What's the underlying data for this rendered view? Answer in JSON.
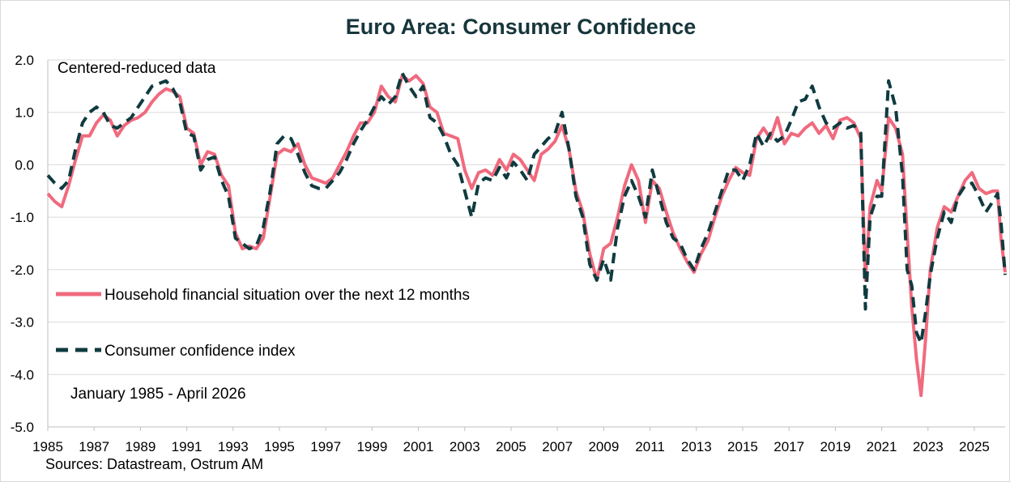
{
  "chart_data": {
    "type": "line",
    "title": "Euro Area:  Consumer Confidence",
    "annotation": "Centered-reduced data",
    "period": "January 1985 - April 2026",
    "source": "Sources: Datastream, Ostrum AM",
    "ylim": [
      -5.0,
      2.0
    ],
    "xlim": [
      1985,
      2026.33
    ],
    "y_ticks": [
      "2.0",
      "1.0",
      "0.0",
      "-1.0",
      "-2.0",
      "-3.0",
      "-4.0",
      "-5.0"
    ],
    "x_ticks": [
      "1985",
      "1987",
      "1989",
      "1991",
      "1993",
      "1995",
      "1997",
      "1999",
      "2001",
      "2003",
      "2005",
      "2007",
      "2009",
      "2011",
      "2013",
      "2015",
      "2017",
      "2019",
      "2021",
      "2023",
      "2025"
    ],
    "grid": "horizontal",
    "legend_placement": "left",
    "series": [
      {
        "name": "Household financial situation over the next 12 months",
        "color": "#f06a7e",
        "style": "solid",
        "points": [
          [
            1985.0,
            -0.55
          ],
          [
            1985.3,
            -0.7
          ],
          [
            1985.6,
            -0.8
          ],
          [
            1985.9,
            -0.4
          ],
          [
            1986.2,
            0.1
          ],
          [
            1986.5,
            0.55
          ],
          [
            1986.8,
            0.55
          ],
          [
            1987.1,
            0.8
          ],
          [
            1987.4,
            0.95
          ],
          [
            1987.7,
            0.85
          ],
          [
            1988.0,
            0.55
          ],
          [
            1988.3,
            0.75
          ],
          [
            1988.6,
            0.85
          ],
          [
            1988.9,
            0.9
          ],
          [
            1989.2,
            1.0
          ],
          [
            1989.5,
            1.2
          ],
          [
            1989.8,
            1.35
          ],
          [
            1990.1,
            1.45
          ],
          [
            1990.4,
            1.4
          ],
          [
            1990.7,
            1.3
          ],
          [
            1991.0,
            0.7
          ],
          [
            1991.3,
            0.6
          ],
          [
            1991.6,
            0.0
          ],
          [
            1991.9,
            0.25
          ],
          [
            1992.2,
            0.2
          ],
          [
            1992.5,
            -0.2
          ],
          [
            1992.8,
            -0.4
          ],
          [
            1993.1,
            -1.3
          ],
          [
            1993.4,
            -1.6
          ],
          [
            1993.7,
            -1.55
          ],
          [
            1994.0,
            -1.6
          ],
          [
            1994.3,
            -1.4
          ],
          [
            1994.6,
            -0.6
          ],
          [
            1994.9,
            0.2
          ],
          [
            1995.2,
            0.3
          ],
          [
            1995.5,
            0.25
          ],
          [
            1995.8,
            0.4
          ],
          [
            1996.1,
            0.0
          ],
          [
            1996.4,
            -0.25
          ],
          [
            1996.7,
            -0.3
          ],
          [
            1997.0,
            -0.35
          ],
          [
            1997.3,
            -0.25
          ],
          [
            1997.6,
            0.0
          ],
          [
            1997.9,
            0.25
          ],
          [
            1998.2,
            0.55
          ],
          [
            1998.5,
            0.8
          ],
          [
            1998.8,
            0.8
          ],
          [
            1999.1,
            1.0
          ],
          [
            1999.4,
            1.5
          ],
          [
            1999.7,
            1.3
          ],
          [
            2000.0,
            1.2
          ],
          [
            2000.3,
            1.7
          ],
          [
            2000.6,
            1.6
          ],
          [
            2000.9,
            1.7
          ],
          [
            2001.2,
            1.55
          ],
          [
            2001.5,
            1.1
          ],
          [
            2001.8,
            1.0
          ],
          [
            2002.1,
            0.6
          ],
          [
            2002.4,
            0.55
          ],
          [
            2002.7,
            0.5
          ],
          [
            2003.0,
            -0.1
          ],
          [
            2003.3,
            -0.45
          ],
          [
            2003.6,
            -0.15
          ],
          [
            2003.9,
            -0.1
          ],
          [
            2004.2,
            -0.2
          ],
          [
            2004.5,
            0.1
          ],
          [
            2004.8,
            -0.1
          ],
          [
            2005.1,
            0.2
          ],
          [
            2005.4,
            0.1
          ],
          [
            2005.7,
            -0.1
          ],
          [
            2006.0,
            -0.3
          ],
          [
            2006.3,
            0.2
          ],
          [
            2006.6,
            0.3
          ],
          [
            2006.9,
            0.45
          ],
          [
            2007.2,
            0.75
          ],
          [
            2007.5,
            0.3
          ],
          [
            2007.8,
            -0.5
          ],
          [
            2008.1,
            -0.9
          ],
          [
            2008.4,
            -1.7
          ],
          [
            2008.7,
            -2.2
          ],
          [
            2009.0,
            -1.6
          ],
          [
            2009.3,
            -1.5
          ],
          [
            2009.6,
            -1.0
          ],
          [
            2009.9,
            -0.4
          ],
          [
            2010.2,
            0.0
          ],
          [
            2010.5,
            -0.3
          ],
          [
            2010.8,
            -1.1
          ],
          [
            2011.1,
            -0.3
          ],
          [
            2011.4,
            -0.45
          ],
          [
            2011.7,
            -0.9
          ],
          [
            2012.0,
            -1.3
          ],
          [
            2012.3,
            -1.6
          ],
          [
            2012.6,
            -1.85
          ],
          [
            2012.9,
            -2.05
          ],
          [
            2013.2,
            -1.7
          ],
          [
            2013.5,
            -1.45
          ],
          [
            2013.8,
            -1.0
          ],
          [
            2014.1,
            -0.6
          ],
          [
            2014.4,
            -0.3
          ],
          [
            2014.7,
            -0.05
          ],
          [
            2015.0,
            -0.15
          ],
          [
            2015.3,
            -0.2
          ],
          [
            2015.6,
            0.5
          ],
          [
            2015.9,
            0.7
          ],
          [
            2016.2,
            0.5
          ],
          [
            2016.5,
            0.9
          ],
          [
            2016.8,
            0.4
          ],
          [
            2017.1,
            0.6
          ],
          [
            2017.4,
            0.55
          ],
          [
            2017.7,
            0.7
          ],
          [
            2018.0,
            0.8
          ],
          [
            2018.3,
            0.6
          ],
          [
            2018.6,
            0.75
          ],
          [
            2018.9,
            0.5
          ],
          [
            2019.2,
            0.85
          ],
          [
            2019.5,
            0.9
          ],
          [
            2019.8,
            0.8
          ],
          [
            2020.1,
            0.5
          ],
          [
            2020.3,
            -2.2
          ],
          [
            2020.5,
            -0.8
          ],
          [
            2020.8,
            -0.3
          ],
          [
            2021.0,
            -0.5
          ],
          [
            2021.3,
            0.9
          ],
          [
            2021.6,
            0.7
          ],
          [
            2021.9,
            0.2
          ],
          [
            2022.1,
            -1.3
          ],
          [
            2022.3,
            -2.7
          ],
          [
            2022.5,
            -3.7
          ],
          [
            2022.7,
            -4.4
          ],
          [
            2022.9,
            -3.3
          ],
          [
            2023.1,
            -2.0
          ],
          [
            2023.4,
            -1.2
          ],
          [
            2023.7,
            -0.8
          ],
          [
            2024.0,
            -0.9
          ],
          [
            2024.3,
            -0.6
          ],
          [
            2024.6,
            -0.3
          ],
          [
            2024.9,
            -0.15
          ],
          [
            2025.2,
            -0.45
          ],
          [
            2025.5,
            -0.55
          ],
          [
            2025.8,
            -0.5
          ],
          [
            2026.0,
            -0.5
          ],
          [
            2026.15,
            -1.4
          ],
          [
            2026.33,
            -2.05
          ]
        ]
      },
      {
        "name": "Consumer confidence index",
        "color": "#0f3b3f",
        "style": "dashed",
        "points": [
          [
            1985.0,
            -0.2
          ],
          [
            1985.3,
            -0.35
          ],
          [
            1985.6,
            -0.45
          ],
          [
            1985.9,
            -0.3
          ],
          [
            1986.2,
            0.3
          ],
          [
            1986.5,
            0.8
          ],
          [
            1986.8,
            1.0
          ],
          [
            1987.1,
            1.1
          ],
          [
            1987.4,
            1.0
          ],
          [
            1987.7,
            0.75
          ],
          [
            1988.0,
            0.7
          ],
          [
            1988.3,
            0.8
          ],
          [
            1988.6,
            0.9
          ],
          [
            1988.9,
            1.1
          ],
          [
            1989.2,
            1.3
          ],
          [
            1989.5,
            1.5
          ],
          [
            1989.8,
            1.55
          ],
          [
            1990.1,
            1.6
          ],
          [
            1990.4,
            1.45
          ],
          [
            1990.7,
            1.2
          ],
          [
            1991.0,
            0.6
          ],
          [
            1991.3,
            0.55
          ],
          [
            1991.6,
            -0.1
          ],
          [
            1991.9,
            0.1
          ],
          [
            1992.2,
            0.15
          ],
          [
            1992.5,
            -0.3
          ],
          [
            1992.8,
            -0.6
          ],
          [
            1993.1,
            -1.4
          ],
          [
            1993.4,
            -1.5
          ],
          [
            1993.7,
            -1.6
          ],
          [
            1994.0,
            -1.55
          ],
          [
            1994.3,
            -1.2
          ],
          [
            1994.6,
            -0.5
          ],
          [
            1994.9,
            0.4
          ],
          [
            1995.2,
            0.55
          ],
          [
            1995.5,
            0.5
          ],
          [
            1995.8,
            0.2
          ],
          [
            1996.1,
            -0.15
          ],
          [
            1996.4,
            -0.4
          ],
          [
            1996.7,
            -0.45
          ],
          [
            1997.0,
            -0.45
          ],
          [
            1997.3,
            -0.3
          ],
          [
            1997.6,
            -0.15
          ],
          [
            1997.9,
            0.1
          ],
          [
            1998.2,
            0.4
          ],
          [
            1998.5,
            0.65
          ],
          [
            1998.8,
            0.85
          ],
          [
            1999.1,
            1.1
          ],
          [
            1999.4,
            1.3
          ],
          [
            1999.7,
            1.15
          ],
          [
            2000.0,
            1.3
          ],
          [
            2000.3,
            1.75
          ],
          [
            2000.6,
            1.5
          ],
          [
            2000.9,
            1.3
          ],
          [
            2001.2,
            1.5
          ],
          [
            2001.5,
            0.9
          ],
          [
            2001.8,
            0.8
          ],
          [
            2002.1,
            0.55
          ],
          [
            2002.4,
            0.2
          ],
          [
            2002.7,
            0.0
          ],
          [
            2003.0,
            -0.5
          ],
          [
            2003.3,
            -1.0
          ],
          [
            2003.6,
            -0.35
          ],
          [
            2003.9,
            -0.25
          ],
          [
            2004.2,
            -0.3
          ],
          [
            2004.5,
            -0.05
          ],
          [
            2004.8,
            -0.25
          ],
          [
            2005.1,
            0.05
          ],
          [
            2005.4,
            -0.1
          ],
          [
            2005.7,
            -0.3
          ],
          [
            2006.0,
            0.2
          ],
          [
            2006.3,
            0.35
          ],
          [
            2006.6,
            0.5
          ],
          [
            2006.9,
            0.6
          ],
          [
            2007.2,
            1.0
          ],
          [
            2007.5,
            0.3
          ],
          [
            2007.8,
            -0.6
          ],
          [
            2008.1,
            -1.0
          ],
          [
            2008.4,
            -1.9
          ],
          [
            2008.7,
            -2.2
          ],
          [
            2009.0,
            -1.8
          ],
          [
            2009.3,
            -2.2
          ],
          [
            2009.6,
            -1.2
          ],
          [
            2009.9,
            -0.6
          ],
          [
            2010.2,
            -0.3
          ],
          [
            2010.5,
            -0.6
          ],
          [
            2010.8,
            -1.0
          ],
          [
            2011.1,
            -0.1
          ],
          [
            2011.4,
            -0.6
          ],
          [
            2011.7,
            -1.1
          ],
          [
            2012.0,
            -1.4
          ],
          [
            2012.3,
            -1.5
          ],
          [
            2012.6,
            -1.8
          ],
          [
            2012.9,
            -2.0
          ],
          [
            2013.2,
            -1.6
          ],
          [
            2013.5,
            -1.3
          ],
          [
            2013.8,
            -0.9
          ],
          [
            2014.1,
            -0.5
          ],
          [
            2014.4,
            -0.1
          ],
          [
            2014.7,
            -0.1
          ],
          [
            2015.0,
            -0.3
          ],
          [
            2015.3,
            0.0
          ],
          [
            2015.6,
            0.6
          ],
          [
            2015.9,
            0.35
          ],
          [
            2016.2,
            0.6
          ],
          [
            2016.5,
            0.45
          ],
          [
            2016.8,
            0.55
          ],
          [
            2017.1,
            0.85
          ],
          [
            2017.4,
            1.2
          ],
          [
            2017.7,
            1.25
          ],
          [
            2018.0,
            1.5
          ],
          [
            2018.3,
            1.1
          ],
          [
            2018.6,
            0.8
          ],
          [
            2018.9,
            0.7
          ],
          [
            2019.2,
            0.8
          ],
          [
            2019.5,
            0.7
          ],
          [
            2019.8,
            0.75
          ],
          [
            2020.1,
            0.6
          ],
          [
            2020.3,
            -2.75
          ],
          [
            2020.5,
            -1.0
          ],
          [
            2020.8,
            -0.6
          ],
          [
            2021.0,
            -0.6
          ],
          [
            2021.3,
            1.6
          ],
          [
            2021.6,
            1.1
          ],
          [
            2021.9,
            -0.2
          ],
          [
            2022.1,
            -2.0
          ],
          [
            2022.3,
            -2.3
          ],
          [
            2022.5,
            -3.2
          ],
          [
            2022.7,
            -3.4
          ],
          [
            2022.9,
            -2.8
          ],
          [
            2023.1,
            -2.1
          ],
          [
            2023.4,
            -1.4
          ],
          [
            2023.7,
            -0.9
          ],
          [
            2024.0,
            -1.1
          ],
          [
            2024.3,
            -0.6
          ],
          [
            2024.6,
            -0.4
          ],
          [
            2024.9,
            -0.35
          ],
          [
            2025.2,
            -0.6
          ],
          [
            2025.5,
            -0.9
          ],
          [
            2025.8,
            -0.7
          ],
          [
            2026.0,
            -0.55
          ],
          [
            2026.15,
            -1.1
          ],
          [
            2026.33,
            -2.1
          ]
        ]
      }
    ]
  }
}
